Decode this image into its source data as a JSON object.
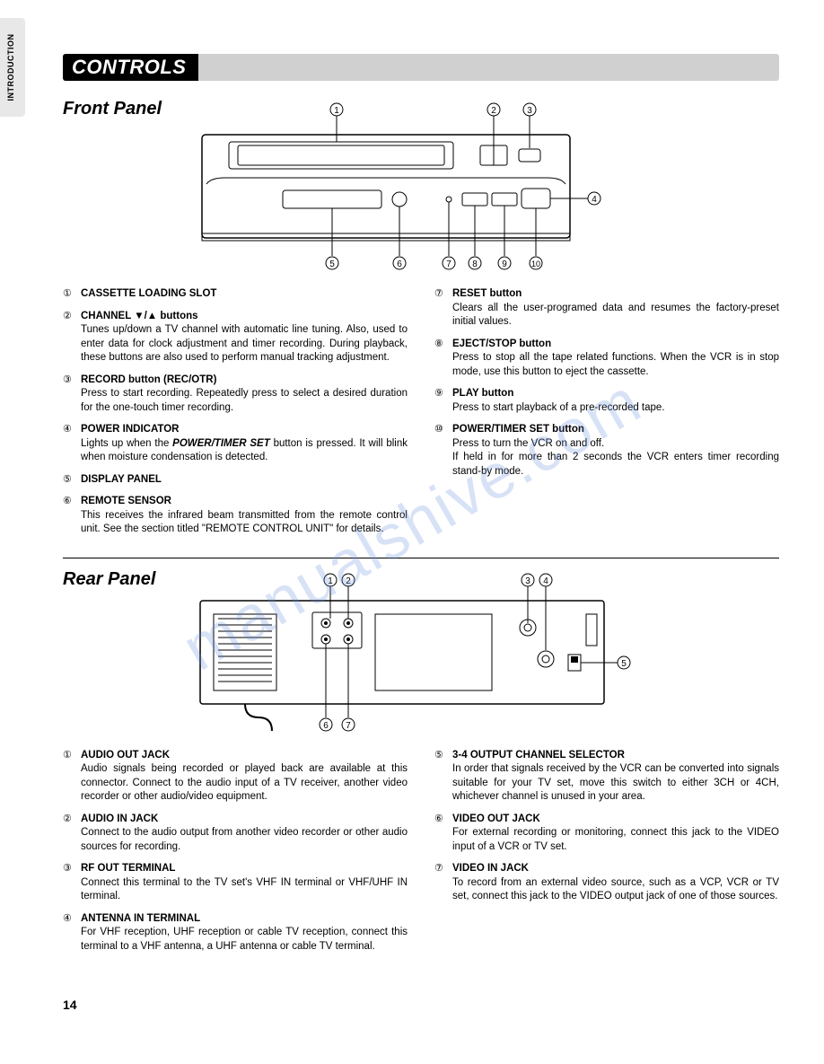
{
  "sideTab": "INTRODUCTION",
  "headerTitle": "CONTROLS",
  "frontPanel": {
    "title": "Front Panel",
    "callouts": [
      "①",
      "②",
      "③",
      "④",
      "⑤",
      "⑥",
      "⑦",
      "⑧",
      "⑨",
      "⑩"
    ],
    "leftItems": [
      {
        "num": "①",
        "title": "CASSETTE LOADING SLOT",
        "body": ""
      },
      {
        "num": "②",
        "title": "CHANNEL ▼/▲ buttons",
        "body": "Tunes up/down a TV channel with automatic line tuning. Also, used to enter data for clock adjustment and timer recording. During playback, these buttons are also used to perform manual tracking adjustment."
      },
      {
        "num": "③",
        "title": "RECORD button (REC/OTR)",
        "body": "Press to start recording. Repeatedly press to select a desired duration for the one-touch timer recording."
      },
      {
        "num": "④",
        "title": "POWER INDICATOR",
        "body": "Lights up when the <b><i>POWER/TIMER SET</i></b> button is pressed. It will blink when moisture condensation is detected."
      },
      {
        "num": "⑤",
        "title": "DISPLAY PANEL",
        "body": ""
      },
      {
        "num": "⑥",
        "title": "REMOTE SENSOR",
        "body": "This receives the infrared beam transmitted from the remote control unit. See the section titled \"REMOTE CONTROL UNIT\" for details."
      }
    ],
    "rightItems": [
      {
        "num": "⑦",
        "title": "RESET button",
        "body": "Clears all the user-programed data and resumes the factory-preset initial values."
      },
      {
        "num": "⑧",
        "title": "EJECT/STOP button",
        "body": "Press to stop all the tape related functions. When the VCR is in stop mode, use this button to eject the cassette."
      },
      {
        "num": "⑨",
        "title": "PLAY button",
        "body": "Press to start playback of a pre-recorded tape."
      },
      {
        "num": "⑩",
        "title": "POWER/TIMER SET button",
        "body": "Press to turn the VCR on and off.<br>If held in for more than 2 seconds the VCR enters timer recording stand-by mode."
      }
    ]
  },
  "rearPanel": {
    "title": "Rear Panel",
    "callouts": [
      "①",
      "②",
      "③",
      "④",
      "⑤",
      "⑥",
      "⑦"
    ],
    "leftItems": [
      {
        "num": "①",
        "title": "AUDIO OUT JACK",
        "body": "Audio signals being recorded or played back are available at this connector. Connect to the audio input of a TV receiver, another video recorder or other audio/video equipment."
      },
      {
        "num": "②",
        "title": "AUDIO IN JACK",
        "body": "Connect to the audio output from another video recorder or other audio sources for recording."
      },
      {
        "num": "③",
        "title": "RF OUT TERMINAL",
        "body": "Connect this terminal to the TV set's VHF IN terminal or VHF/UHF IN terminal."
      },
      {
        "num": "④",
        "title": "ANTENNA IN TERMINAL",
        "body": "For VHF reception, UHF reception or cable TV reception, connect this terminal to a VHF antenna, a UHF antenna or cable TV terminal."
      }
    ],
    "rightItems": [
      {
        "num": "⑤",
        "title": "3-4 OUTPUT CHANNEL SELECTOR",
        "body": "In order that signals received by the VCR can be converted into signals suitable for your TV set, move this switch to either 3CH or 4CH, whichever channel is unused in your area."
      },
      {
        "num": "⑥",
        "title": "VIDEO OUT JACK",
        "body": "For external recording or monitoring, connect this jack to the VIDEO input of a VCR or TV set."
      },
      {
        "num": "⑦",
        "title": "VIDEO IN JACK",
        "body": "To record from an external video source, such as a VCP, VCR or TV set, connect this jack to the VIDEO output jack of one of those sources."
      }
    ]
  },
  "pageNumber": "14",
  "watermark": "manualshive.com",
  "colors": {
    "watermark": "rgba(100,140,220,0.25)",
    "headerBg": "#000000",
    "headerGrey": "#d0d0d0",
    "sideTabBg": "#e8e8e8"
  }
}
